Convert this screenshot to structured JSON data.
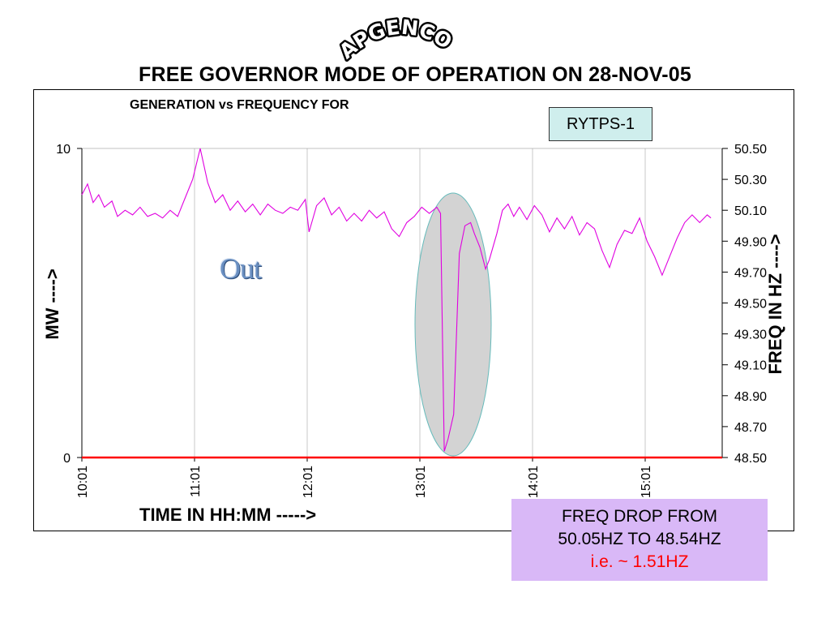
{
  "header": {
    "org_name": "APGENCO",
    "title": "FREE GOVERNOR MODE OF OPERATION ON 28-NOV-05"
  },
  "colors": {
    "frequency_line": "#e000e0",
    "mw_line": "#ff0000",
    "highlight_fill": "#d3d3d3",
    "highlight_stroke": "#66bbbb",
    "unit_box_fill": "#cfeeed",
    "note_fill": "#d9b8f7"
  },
  "chart_data": {
    "type": "line",
    "title": "GENERATION vs FREQUENCY FOR",
    "unit_label": "RYTPS-1",
    "xlabel": "TIME IN HH:MM ----->",
    "ylabel_left": "MW ---->",
    "ylabel_right": "FREQ IN HZ ---->",
    "x_ticks": [
      "10:01",
      "11:01",
      "12:01",
      "13:01",
      "14:01",
      "15:01"
    ],
    "y_left_ticks": [
      "0",
      "10"
    ],
    "y_left_range": [
      0,
      10
    ],
    "y_right_ticks": [
      "48.50",
      "48.70",
      "48.90",
      "49.10",
      "49.30",
      "49.50",
      "49.70",
      "49.90",
      "50.10",
      "50.30",
      "50.50"
    ],
    "y_right_range": [
      48.5,
      50.5
    ],
    "grid": "vertical lines at x ticks",
    "series": [
      {
        "name": "MW",
        "axis": "left",
        "points": [
          [
            "10:01",
            0
          ],
          [
            "15:36",
            0
          ]
        ]
      },
      {
        "name": "FREQUENCY",
        "axis": "right",
        "points": [
          [
            "10:01",
            50.2
          ],
          [
            "10:04",
            50.27
          ],
          [
            "10:07",
            50.15
          ],
          [
            "10:10",
            50.2
          ],
          [
            "10:13",
            50.12
          ],
          [
            "10:17",
            50.16
          ],
          [
            "10:20",
            50.06
          ],
          [
            "10:24",
            50.1
          ],
          [
            "10:28",
            50.07
          ],
          [
            "10:32",
            50.12
          ],
          [
            "10:36",
            50.06
          ],
          [
            "10:40",
            50.08
          ],
          [
            "10:44",
            50.05
          ],
          [
            "10:48",
            50.1
          ],
          [
            "10:52",
            50.06
          ],
          [
            "10:56",
            50.18
          ],
          [
            "11:00",
            50.3
          ],
          [
            "11:04",
            50.5
          ],
          [
            "11:08",
            50.28
          ],
          [
            "11:12",
            50.15
          ],
          [
            "11:16",
            50.2
          ],
          [
            "11:20",
            50.1
          ],
          [
            "11:24",
            50.16
          ],
          [
            "11:28",
            50.09
          ],
          [
            "11:32",
            50.14
          ],
          [
            "11:36",
            50.07
          ],
          [
            "11:40",
            50.14
          ],
          [
            "11:44",
            50.1
          ],
          [
            "11:48",
            50.08
          ],
          [
            "11:52",
            50.12
          ],
          [
            "11:56",
            50.1
          ],
          [
            "12:00",
            50.17
          ],
          [
            "12:02",
            49.96
          ],
          [
            "12:06",
            50.13
          ],
          [
            "12:10",
            50.18
          ],
          [
            "12:14",
            50.07
          ],
          [
            "12:18",
            50.12
          ],
          [
            "12:22",
            50.03
          ],
          [
            "12:26",
            50.08
          ],
          [
            "12:30",
            50.03
          ],
          [
            "12:34",
            50.1
          ],
          [
            "12:38",
            50.05
          ],
          [
            "12:42",
            50.09
          ],
          [
            "12:46",
            49.98
          ],
          [
            "12:50",
            49.93
          ],
          [
            "12:54",
            50.02
          ],
          [
            "12:58",
            50.06
          ],
          [
            "13:02",
            50.12
          ],
          [
            "13:06",
            50.08
          ],
          [
            "13:10",
            50.12
          ],
          [
            "13:12",
            50.08
          ],
          [
            "13:14",
            48.54
          ],
          [
            "13:16",
            48.62
          ],
          [
            "13:19",
            48.78
          ],
          [
            "13:22",
            49.82
          ],
          [
            "13:25",
            50.0
          ],
          [
            "13:28",
            50.02
          ],
          [
            "13:30",
            49.95
          ],
          [
            "13:33",
            49.86
          ],
          [
            "13:36",
            49.72
          ],
          [
            "13:38",
            49.78
          ],
          [
            "13:42",
            49.95
          ],
          [
            "13:45",
            50.1
          ],
          [
            "13:48",
            50.14
          ],
          [
            "13:51",
            50.06
          ],
          [
            "13:54",
            50.12
          ],
          [
            "13:58",
            50.04
          ],
          [
            "14:02",
            50.13
          ],
          [
            "14:06",
            50.07
          ],
          [
            "14:10",
            49.96
          ],
          [
            "14:14",
            50.05
          ],
          [
            "14:18",
            49.98
          ],
          [
            "14:22",
            50.06
          ],
          [
            "14:26",
            49.94
          ],
          [
            "14:30",
            50.02
          ],
          [
            "14:34",
            49.98
          ],
          [
            "14:38",
            49.84
          ],
          [
            "14:42",
            49.73
          ],
          [
            "14:46",
            49.88
          ],
          [
            "14:50",
            49.97
          ],
          [
            "14:54",
            49.95
          ],
          [
            "14:58",
            50.05
          ],
          [
            "15:02",
            49.9
          ],
          [
            "15:06",
            49.8
          ],
          [
            "15:10",
            49.68
          ],
          [
            "15:14",
            49.8
          ],
          [
            "15:18",
            49.92
          ],
          [
            "15:22",
            50.02
          ],
          [
            "15:26",
            50.07
          ],
          [
            "15:30",
            50.02
          ],
          [
            "15:34",
            50.07
          ],
          [
            "15:36",
            50.05
          ]
        ]
      }
    ],
    "annotations": {
      "out_label": "Out",
      "highlight": "ellipse around the frequency drop near 13:14"
    }
  },
  "note": {
    "line1": "FREQ DROP FROM",
    "line2": "50.05HZ TO 48.54HZ",
    "line3": "i.e. ~ 1.51HZ"
  }
}
